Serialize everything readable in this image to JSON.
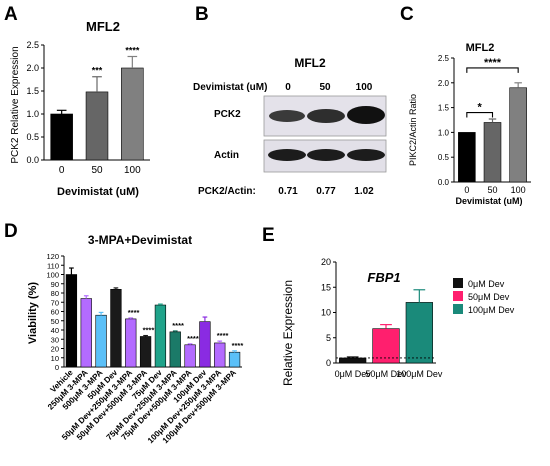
{
  "panels": {
    "A": "A",
    "B": "B",
    "C": "C",
    "D": "D",
    "E": "E"
  },
  "colors": {
    "vehicle": "#000000",
    "purple": "#b36bff",
    "lightblue": "#5bc0f8",
    "darkgray": "#1a1a1a",
    "teal": "#1fa38a",
    "darkgreen": "#1b7a68",
    "violet": "#8a2be2",
    "pink": "#ff1f6e",
    "gray": "#7a7a7a"
  },
  "blot": {
    "title": "MFL2",
    "dose_label": "Devimistat (uM)",
    "doses": [
      "0",
      "50",
      "100"
    ],
    "bands": [
      "PCK2",
      "Actin"
    ],
    "ratio_label": "PCK2/Actin:",
    "ratios": [
      "0.71",
      "0.77",
      "1.02"
    ]
  },
  "chart_data": [
    {
      "panel": "A",
      "type": "bar",
      "title": "MFL2",
      "xlabel": "Devimistat (uM)",
      "ylabel": "PCK2 Relative Expression",
      "categories": [
        "0",
        "50",
        "100"
      ],
      "values": [
        1.0,
        1.48,
        2.0
      ],
      "errors": [
        0.08,
        0.33,
        0.25
      ],
      "colors": [
        "#000000",
        "#666666",
        "#808080"
      ],
      "significance": [
        "",
        "***",
        "****"
      ],
      "yticks": [
        "0.0",
        "0.5",
        "1.0",
        "1.5",
        "2.0",
        "2.5"
      ],
      "ylim": [
        0,
        2.5
      ]
    },
    {
      "panel": "C",
      "type": "bar",
      "title": "MFL2",
      "xlabel": "Devimistat (uM)",
      "ylabel": "PIKC2/Actin Ratio",
      "categories": [
        "0",
        "50",
        "100"
      ],
      "values": [
        1.0,
        1.2,
        1.9
      ],
      "errors": [
        0.0,
        0.07,
        0.1
      ],
      "colors": [
        "#000000",
        "#666666",
        "#808080"
      ],
      "brackets": [
        {
          "from": 0,
          "to": 1,
          "label": "*"
        },
        {
          "from": 0,
          "to": 2,
          "label": "****"
        }
      ],
      "yticks": [
        "0.0",
        "0.5",
        "1.0",
        "1.5",
        "2.0",
        "2.5"
      ],
      "ylim": [
        0,
        2.5
      ]
    },
    {
      "panel": "D",
      "type": "bar",
      "title": "3-MPA+Devimistat",
      "xlabel": "",
      "ylabel": "Viability (%)",
      "categories": [
        "Vehicle",
        "250μM 3-MPA",
        "500μM 3-MPA",
        "50μM Dev",
        "50μM Dev+250μM 3-MPA",
        "50μM Dev+500μM 3-MPA",
        "75μM Dev",
        "75μM Dev+250μM 3-MPA",
        "75μM Dev+500μM 3-MPA",
        "100μM Dev",
        "100μM Dev+250μM 3-MPA",
        "100μM Dev+500μM 3-MPA"
      ],
      "values": [
        100,
        74,
        56,
        84,
        52,
        33,
        67,
        38,
        24,
        49,
        26,
        16
      ],
      "errors": [
        7,
        3,
        3,
        1.5,
        1,
        1,
        1,
        1,
        1,
        5,
        2,
        1.5
      ],
      "colors": [
        "#000000",
        "#b36bff",
        "#5bc0f8",
        "#1a1a1a",
        "#b36bff",
        "#1a1a1a",
        "#1fa38a",
        "#1b7a68",
        "#b36bff",
        "#8a2be2",
        "#b36bff",
        "#5bc0f8"
      ],
      "significance": [
        "",
        "",
        "",
        "",
        "****",
        "****",
        "",
        "****",
        "****",
        "",
        "****",
        "****"
      ],
      "yticks": [
        "0",
        "10",
        "20",
        "30",
        "40",
        "50",
        "60",
        "70",
        "80",
        "90",
        "100",
        "110",
        "120"
      ],
      "ylim": [
        0,
        120
      ]
    },
    {
      "panel": "E",
      "type": "bar",
      "title": "FBP1",
      "xlabel": "",
      "ylabel": "Relative Expression",
      "categories": [
        "0μM Dev",
        "50μM Dev",
        "100μM Dev"
      ],
      "values": [
        1.0,
        6.8,
        12.0
      ],
      "errors": [
        0.2,
        0.8,
        2.5
      ],
      "colors": [
        "#111111",
        "#ff1f6e",
        "#1a8a7a"
      ],
      "legend": [
        "0μM Dev",
        "50μM Dev",
        "100μM Dev"
      ],
      "legend_position": "top-right",
      "reference_line": 1.0,
      "yticks": [
        "0",
        "5",
        "10",
        "15",
        "20"
      ],
      "ylim": [
        0,
        20
      ]
    }
  ]
}
